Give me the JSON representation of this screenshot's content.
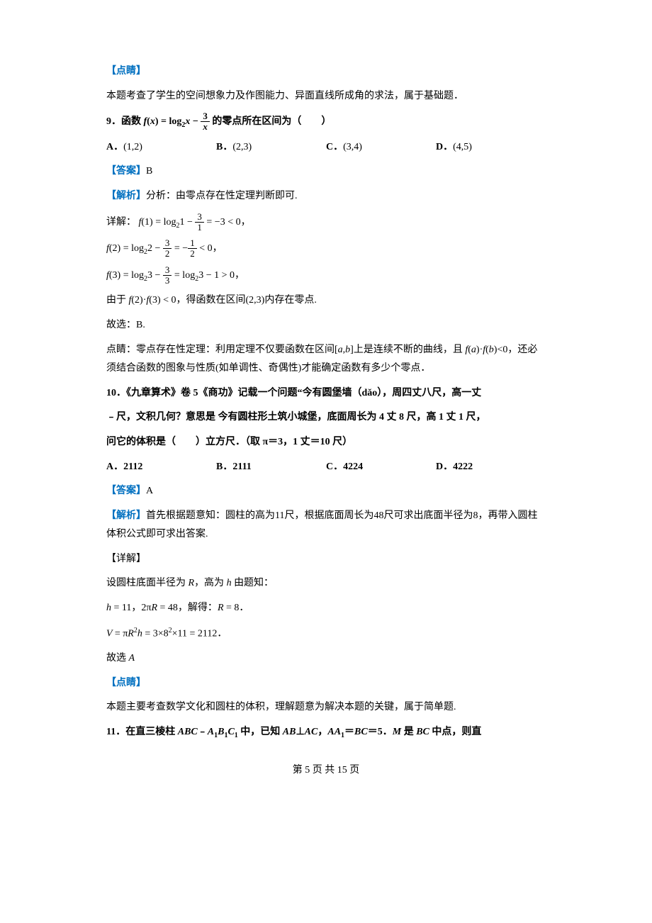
{
  "sec1": {
    "dianjing_label": "【点睛】",
    "dianjing_text": "本题考查了学生的空间想象力及作图能力、异面直线所成角的求法，属于基础题．"
  },
  "q9": {
    "stem_pre": "9．函数",
    "stem_mid": "的零点所在区间为（　　）",
    "options": {
      "A": "(1,2)",
      "B": "(2,3)",
      "C": "(3,4)",
      "D": "(4,5)"
    },
    "answer_label": "【答案】",
    "answer": "B",
    "analysis_label": "【解析】",
    "analysis_intro": "分析：由零点存在性定理判断即可.",
    "detail_label": "详解：",
    "f1": "f(1) = log₂1 − 3/1 = −3 < 0，",
    "f2": "f(2) = log₂2 − 3/2 = −1/2 < 0，",
    "f3": "f(3) = log₂3 − 3/3 = log₂3 − 1 > 0，",
    "conclusion": "由于 f(2)·f(3) < 0，得函数在区间(2,3)内存在零点.",
    "so": "故选：B.",
    "dianjing_pre": "点睛：零点存在性定理：利用定理不仅要函数在区间",
    "dianjing_mid": "上是连续不断的曲线，且",
    "dianjing_end": "<0，还必须结合函数的图象与性质(如单调性、奇偶性)才能确定函数有多少个零点．"
  },
  "q10": {
    "stem1": "10．《九章算术》卷 5《商功》记载一个问题“今有圆堡墙（dǎo），周四丈八尺，高一丈",
    "stem2": "﹣尺，文积几何？意思是 今有圆柱形土筑小城堡，底面周长为 4 丈 8 尺，高 1 丈 1 尺，",
    "stem3": "问它的体积是（　　）立方尺．（取 π＝3，1 丈＝10 尺）",
    "options": {
      "A": "2112",
      "B": "2111",
      "C": "4224",
      "D": "4222"
    },
    "answer_label": "【答案】",
    "answer": "A",
    "analysis_label": "【解析】",
    "analysis": "首先根据题意知：圆柱的高为11尺，根据底面周长为48尺可求出底面半径为8，再带入圆柱体积公式即可求出答案.",
    "detail_label": "【详解】",
    "line1_pre": "设圆柱底面半径为",
    "line1_mid": "，高为",
    "line1_end": "由题知：",
    "line2": "h = 11, 2πR = 48, 解得: R = 8.",
    "line3": "V = πR²h = 3×8²×11 = 2112.",
    "so": "故选",
    "so_letter": "A",
    "dianjing_label": "【点睛】",
    "dianjing": "本题主要考查数学文化和圆柱的体积，理解题意为解决本题的关键，属于简单题."
  },
  "q11": {
    "stem": "中，已知",
    "pre": "11．在直三棱柱",
    "abc": "ABC﹣A₁B₁C₁",
    "cond": "AB⊥AC，AA₁＝BC＝5．M 是 BC 中点，则直"
  },
  "footer": "第 5 页 共 15 页"
}
